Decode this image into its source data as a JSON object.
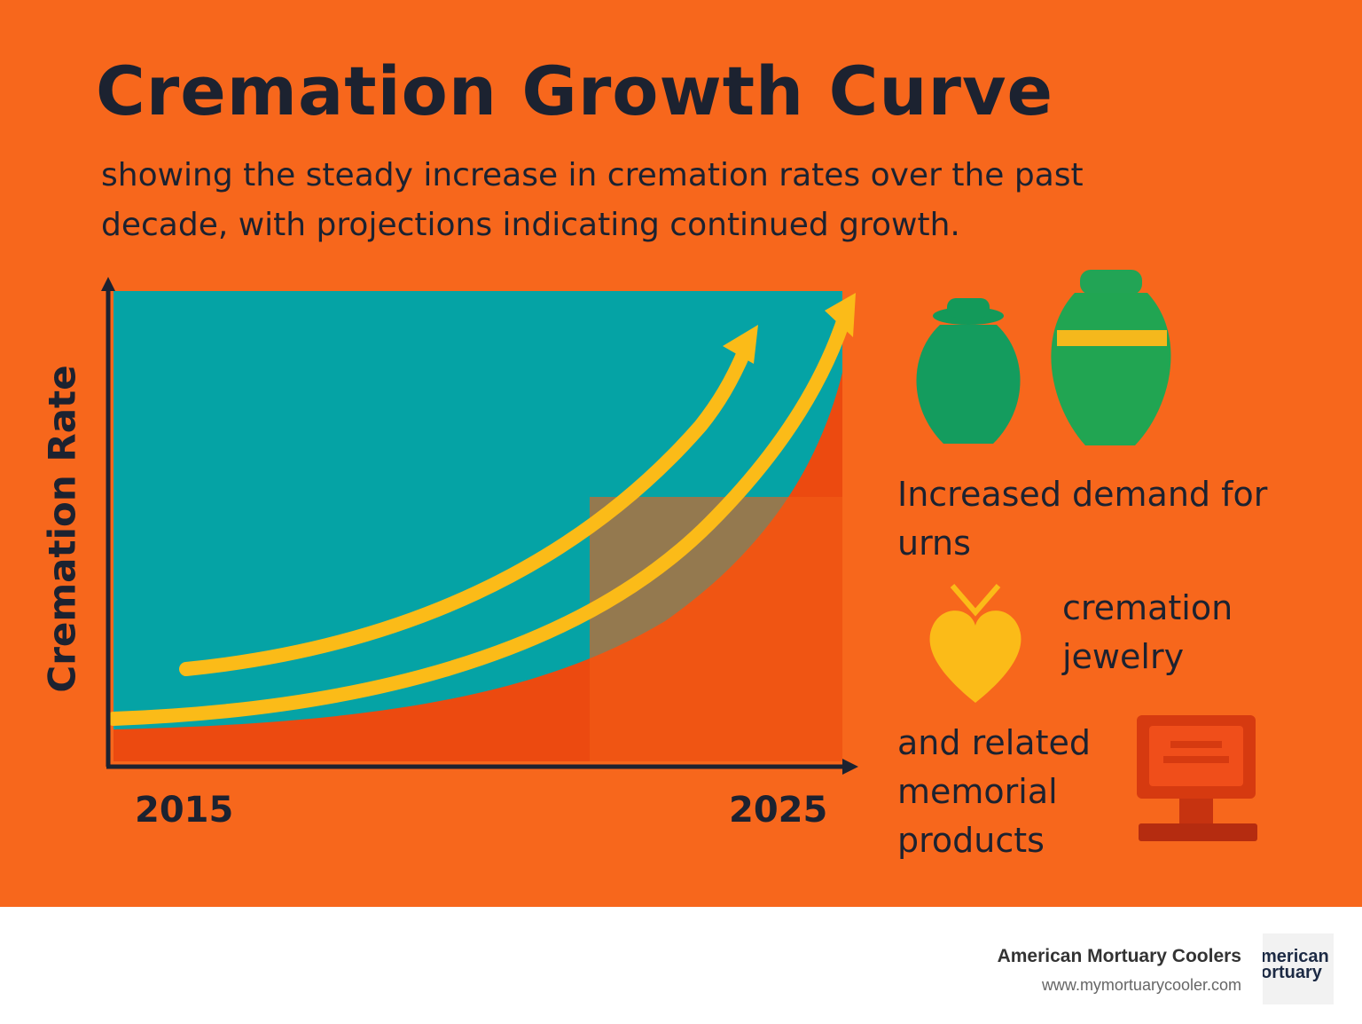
{
  "header": {
    "title": "Cremation Growth Curve",
    "subtitle": "showing the steady increase in cremation rates over the past decade, with projections indicating continued growth."
  },
  "graphic": {
    "y_axis_label": "Cremation Rate",
    "x_labels": [
      "2015",
      "2025"
    ]
  },
  "items": [
    "Increased demand for urns",
    "cremation jewelry",
    "and related memorial products"
  ],
  "footer": {
    "brand": "American Mortuary Coolers",
    "url": "www.mymortuarycooler.com",
    "logo_lines": [
      "merican",
      "ortuary"
    ]
  }
}
